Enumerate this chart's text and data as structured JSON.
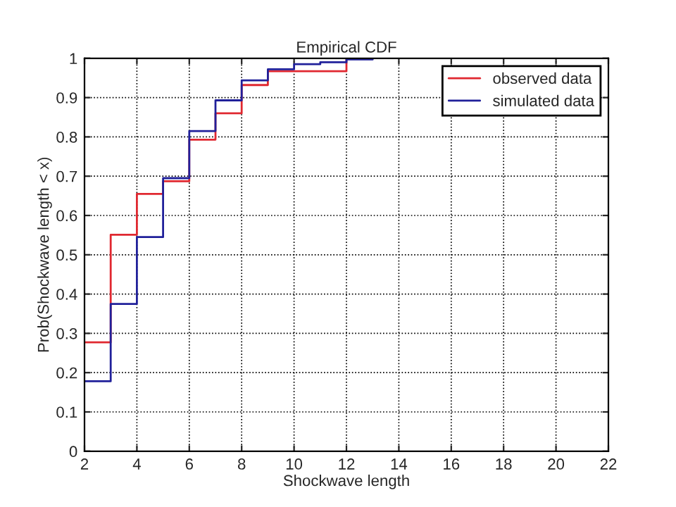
{
  "chart_data": {
    "type": "step",
    "title": "Empirical CDF",
    "xlabel": "Shockwave length",
    "ylabel": "Prob(Shockwave length < x)",
    "series": [
      {
        "name": "observed data",
        "color": "#e02830",
        "x": [
          2,
          3,
          4,
          5,
          6,
          7,
          8,
          9,
          12
        ],
        "values": [
          0.277,
          0.551,
          0.655,
          0.687,
          0.793,
          0.86,
          0.932,
          0.967,
          1.0
        ]
      },
      {
        "name": "simulated data",
        "color": "#20209a",
        "x": [
          2,
          3,
          4,
          5,
          6,
          7,
          8,
          9,
          10,
          11,
          12,
          13
        ],
        "values": [
          0.178,
          0.375,
          0.545,
          0.695,
          0.815,
          0.893,
          0.944,
          0.972,
          0.985,
          0.99,
          0.997,
          1.0
        ]
      }
    ],
    "xlim": [
      2,
      22
    ],
    "xticks": [
      2,
      4,
      6,
      8,
      10,
      12,
      14,
      16,
      18,
      20,
      22
    ],
    "ylim": [
      0,
      1
    ],
    "yticks": [
      0,
      0.1,
      0.2,
      0.3,
      0.4,
      0.5,
      0.6,
      0.7,
      0.8,
      0.9,
      1
    ],
    "grid": true,
    "legend": "top right",
    "line_style": "solid"
  }
}
